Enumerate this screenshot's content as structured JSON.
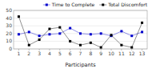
{
  "chart_data": {
    "type": "line",
    "x": [
      1,
      2,
      3,
      4,
      5,
      6,
      7,
      8,
      9,
      10,
      11,
      12,
      13
    ],
    "xlim": [
      0.5,
      13.5
    ],
    "xticks": [
      1,
      2,
      3,
      4,
      5,
      6,
      7,
      8,
      9,
      10,
      11,
      12,
      13
    ],
    "ylim": [
      0,
      50
    ],
    "yticks": [
      0,
      10,
      20,
      30,
      40,
      50
    ],
    "x_label": "Participants",
    "series": [
      {
        "name": "Time to Complete",
        "color": "#0000cc",
        "marker": "square",
        "line_style": "solid",
        "values": [
          19,
          22,
          17,
          19,
          20,
          27,
          20,
          19,
          20,
          17,
          23,
          17,
          22
        ]
      },
      {
        "name": "Total Discomfort",
        "color": "#000000",
        "marker": "square",
        "line_style": "solid",
        "values": [
          42,
          5,
          12,
          26,
          28,
          10,
          5,
          8,
          2,
          18,
          5,
          2,
          34
        ]
      }
    ],
    "grid": true,
    "legend": "upper right"
  }
}
